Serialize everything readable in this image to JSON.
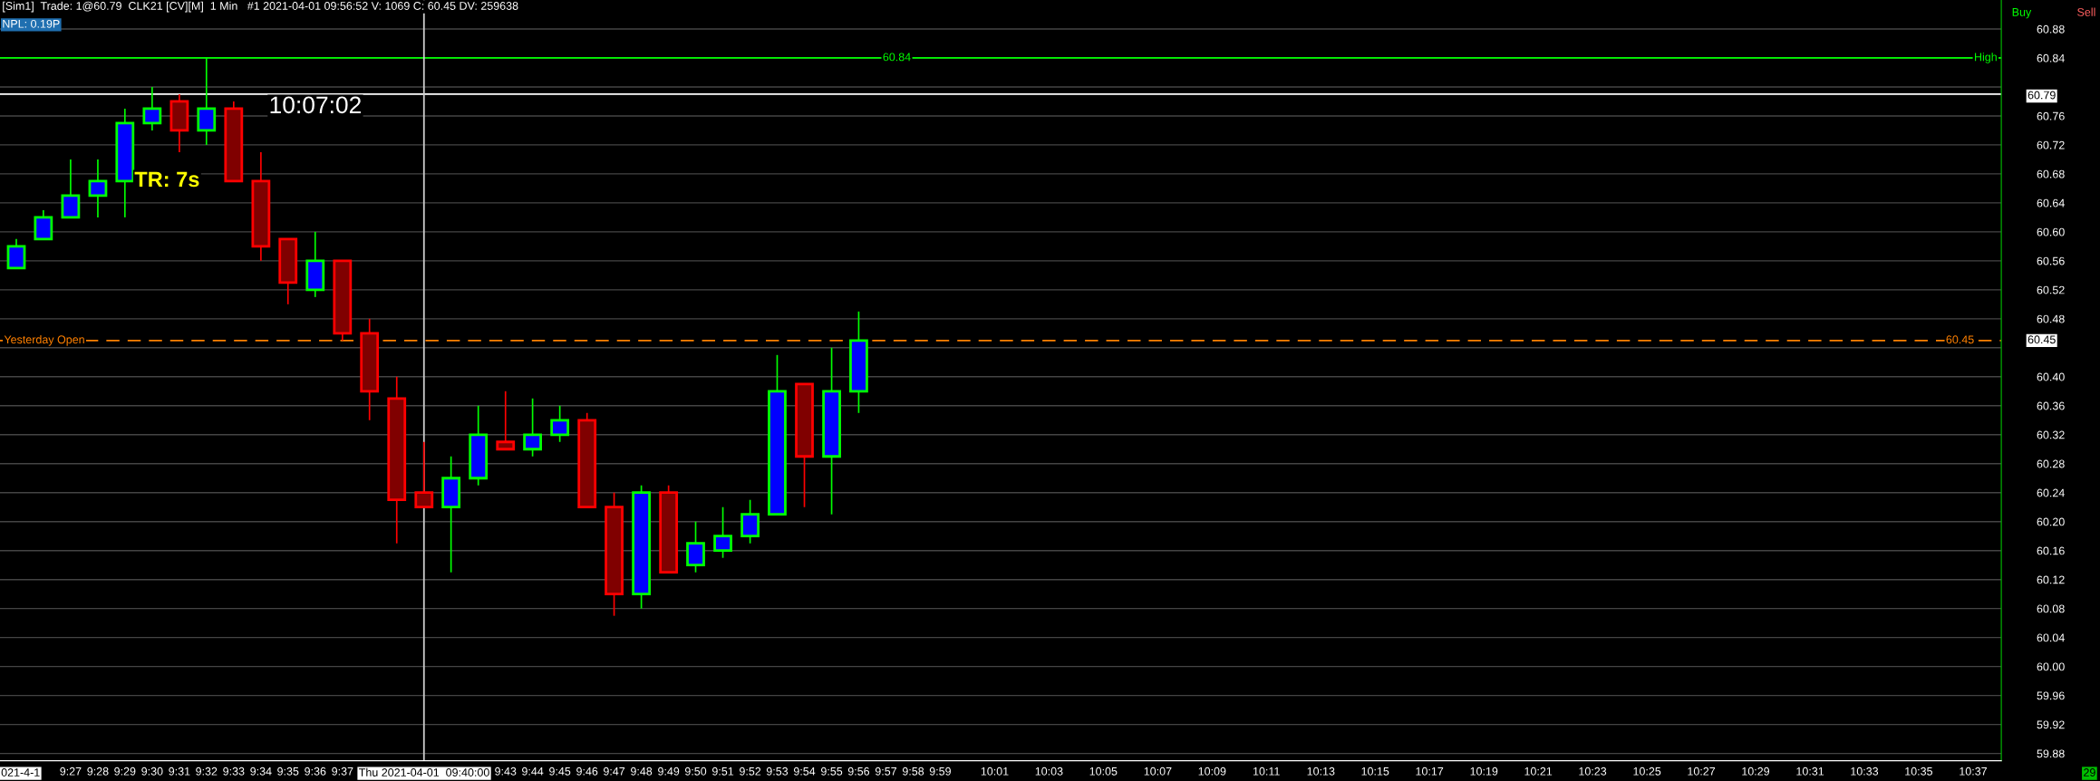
{
  "chart_data": {
    "type": "candlestick",
    "title": "[Sim1]  Trade: 1@60.79  CLK21 [CV][M]  1 Min   #1 2021-04-01 09:56:52 V: 1069 C: 60.45 DV: 259638",
    "subtitle": "NPL: 0.19P",
    "x": [
      9.4167,
      9.4333,
      9.45,
      9.4667,
      9.4833,
      9.5,
      9.5167,
      9.5333,
      9.55,
      9.5667,
      9.5833,
      9.6,
      9.6167,
      9.6333,
      9.65,
      9.6667,
      9.6833,
      9.7,
      9.7167,
      9.7333,
      9.75,
      9.7667,
      9.7833,
      9.8,
      9.8167,
      9.8333,
      9.85,
      9.8667,
      9.8833,
      9.9,
      9.9167,
      9.9333
    ],
    "ohlc": [
      [
        60.55,
        60.59,
        60.55,
        60.58
      ],
      [
        60.59,
        60.63,
        60.59,
        60.62
      ],
      [
        60.62,
        60.7,
        60.62,
        60.65
      ],
      [
        60.65,
        60.7,
        60.62,
        60.67
      ],
      [
        60.67,
        60.77,
        60.62,
        60.75
      ],
      [
        60.75,
        60.8,
        60.74,
        60.77
      ],
      [
        60.78,
        60.79,
        60.71,
        60.74
      ],
      [
        60.74,
        60.84,
        60.72,
        60.77
      ],
      [
        60.77,
        60.78,
        60.67,
        60.67
      ],
      [
        60.67,
        60.71,
        60.56,
        60.58
      ],
      [
        60.59,
        60.59,
        60.5,
        60.53
      ],
      [
        60.52,
        60.6,
        60.51,
        60.56
      ],
      [
        60.56,
        60.56,
        60.45,
        60.46
      ],
      [
        60.46,
        60.48,
        60.34,
        60.38
      ],
      [
        60.37,
        60.4,
        60.17,
        60.23
      ],
      [
        60.24,
        60.31,
        60.22,
        60.22
      ],
      [
        60.22,
        60.29,
        60.13,
        60.26
      ],
      [
        60.26,
        60.36,
        60.25,
        60.32
      ],
      [
        60.31,
        60.38,
        60.3,
        60.3
      ],
      [
        60.3,
        60.37,
        60.29,
        60.32
      ],
      [
        60.32,
        60.36,
        60.31,
        60.34
      ],
      [
        60.34,
        60.35,
        60.22,
        60.22
      ],
      [
        60.22,
        60.24,
        60.07,
        60.1
      ],
      [
        60.1,
        60.25,
        60.08,
        60.24
      ],
      [
        60.24,
        60.25,
        60.13,
        60.13
      ],
      [
        60.14,
        60.2,
        60.13,
        60.17
      ],
      [
        60.16,
        60.22,
        60.15,
        60.18
      ],
      [
        60.18,
        60.23,
        60.17,
        60.21
      ],
      [
        60.21,
        60.43,
        60.21,
        60.38
      ],
      [
        60.39,
        60.39,
        60.22,
        60.29
      ],
      [
        60.29,
        60.44,
        60.21,
        60.38
      ],
      [
        60.38,
        60.49,
        60.35,
        60.45
      ]
    ],
    "colors": [
      "#0000ff",
      "#0000ff",
      "#0000ff",
      "#0000ff",
      "#0000ff",
      "#0000ff",
      "#800000",
      "#0000ff",
      "#800000",
      "#800000",
      "#800000",
      "#0000ff",
      "#800000",
      "#800000",
      "#800000",
      "#800000",
      "#0000ff",
      "#0000ff",
      "#800000",
      "#0000ff",
      "#0000ff",
      "#800000",
      "#800000",
      "#0000ff",
      "#800000",
      "#0000ff",
      "#0000ff",
      "#0000ff",
      "#0000ff",
      "#800000",
      "#0000ff",
      "#0000ff"
    ],
    "xlim": [
      9.4067,
      10.634
    ],
    "xticks": [
      {
        "value": 9.45,
        "label": "9:27"
      },
      {
        "value": 9.4667,
        "label": "9:28"
      },
      {
        "value": 9.4833,
        "label": "9:29"
      },
      {
        "value": 9.5,
        "label": "9:30"
      },
      {
        "value": 9.5167,
        "label": "9:31"
      },
      {
        "value": 9.5333,
        "label": "9:32"
      },
      {
        "value": 9.55,
        "label": "9:33"
      },
      {
        "value": 9.5667,
        "label": "9:34"
      },
      {
        "value": 9.5833,
        "label": "9:35"
      },
      {
        "value": 9.6,
        "label": "9:36"
      },
      {
        "value": 9.6167,
        "label": "9:37"
      },
      {
        "value": 9.7167,
        "label": "9:43"
      },
      {
        "value": 9.7333,
        "label": "9:44"
      },
      {
        "value": 9.75,
        "label": "9:45"
      },
      {
        "value": 9.7667,
        "label": "9:46"
      },
      {
        "value": 9.7833,
        "label": "9:47"
      },
      {
        "value": 9.8,
        "label": "9:48"
      },
      {
        "value": 9.8167,
        "label": "9:49"
      },
      {
        "value": 9.8333,
        "label": "9:50"
      },
      {
        "value": 9.85,
        "label": "9:51"
      },
      {
        "value": 9.8667,
        "label": "9:52"
      },
      {
        "value": 9.8833,
        "label": "9:53"
      },
      {
        "value": 9.9,
        "label": "9:54"
      },
      {
        "value": 9.9167,
        "label": "9:55"
      },
      {
        "value": 9.9333,
        "label": "9:56"
      },
      {
        "value": 9.95,
        "label": "9:57"
      },
      {
        "value": 9.9667,
        "label": "9:58"
      },
      {
        "value": 9.9833,
        "label": "9:59"
      },
      {
        "value": 10.0167,
        "label": "10:01"
      },
      {
        "value": 10.05,
        "label": "10:03"
      },
      {
        "value": 10.0833,
        "label": "10:05"
      },
      {
        "value": 10.1167,
        "label": "10:07"
      },
      {
        "value": 10.15,
        "label": "10:09"
      },
      {
        "value": 10.1833,
        "label": "10:11"
      },
      {
        "value": 10.2167,
        "label": "10:13"
      },
      {
        "value": 10.25,
        "label": "10:15"
      },
      {
        "value": 10.2833,
        "label": "10:17"
      },
      {
        "value": 10.3167,
        "label": "10:19"
      },
      {
        "value": 10.35,
        "label": "10:21"
      },
      {
        "value": 10.3833,
        "label": "10:23"
      },
      {
        "value": 10.4167,
        "label": "10:25"
      },
      {
        "value": 10.45,
        "label": "10:27"
      },
      {
        "value": 10.4833,
        "label": "10:29"
      },
      {
        "value": 10.5167,
        "label": "10:31"
      },
      {
        "value": 10.55,
        "label": "10:33"
      },
      {
        "value": 10.5833,
        "label": "10:35"
      },
      {
        "value": 10.6167,
        "label": "10:37"
      }
    ],
    "ylim": [
      59.87,
      60.92
    ],
    "yticks": [
      {
        "value": 59.88,
        "label": "59.88"
      },
      {
        "value": 59.92,
        "label": "59.92"
      },
      {
        "value": 59.96,
        "label": "59.96"
      },
      {
        "value": 60.0,
        "label": "60.00"
      },
      {
        "value": 60.04,
        "label": "60.04"
      },
      {
        "value": 60.08,
        "label": "60.08"
      },
      {
        "value": 60.12,
        "label": "60.12"
      },
      {
        "value": 60.16,
        "label": "60.16"
      },
      {
        "value": 60.2,
        "label": "60.20"
      },
      {
        "value": 60.24,
        "label": "60.24"
      },
      {
        "value": 60.28,
        "label": "60.28"
      },
      {
        "value": 60.32,
        "label": "60.32"
      },
      {
        "value": 60.36,
        "label": "60.36"
      },
      {
        "value": 60.4,
        "label": "60.40"
      },
      {
        "value": 60.44,
        "label": null
      },
      {
        "value": 60.48,
        "label": "60.48"
      },
      {
        "value": 60.52,
        "label": "60.52"
      },
      {
        "value": 60.56,
        "label": "60.56"
      },
      {
        "value": 60.6,
        "label": "60.60"
      },
      {
        "value": 60.64,
        "label": "60.64"
      },
      {
        "value": 60.68,
        "label": "60.68"
      },
      {
        "value": 60.72,
        "label": "60.72"
      },
      {
        "value": 60.76,
        "label": "60.76"
      },
      {
        "value": 60.8,
        "label": null
      },
      {
        "value": 60.84,
        "label": "60.84"
      },
      {
        "value": 60.88,
        "label": "60.88"
      }
    ],
    "grid": "y",
    "ref_lines": [
      {
        "axis": "y",
        "value": 60.84,
        "label": "High",
        "color": "#00ff00",
        "line_style": "solid"
      },
      {
        "axis": "y",
        "value": 60.79,
        "color": "#ffffff",
        "line_style": "solid"
      },
      {
        "axis": "y",
        "value": 60.45,
        "label": "Yesterday Open",
        "color": "#ff8000",
        "line_style": "dashed"
      },
      {
        "axis": "x",
        "value": 9.6667,
        "color": "#cccccc",
        "line_style": "solid"
      }
    ],
    "annotations": [
      "10:07:02",
      "TR: 7s",
      "Buy",
      "Sell",
      "29",
      "021-4-1",
      "Thu 2021-04-01  09:40:00",
      {
        "text": "60.84",
        "x": 9.948,
        "y": 60.84
      },
      {
        "text": "60.45",
        "x": 10.6,
        "y": 60.45
      },
      "60.79",
      "60.45"
    ]
  }
}
